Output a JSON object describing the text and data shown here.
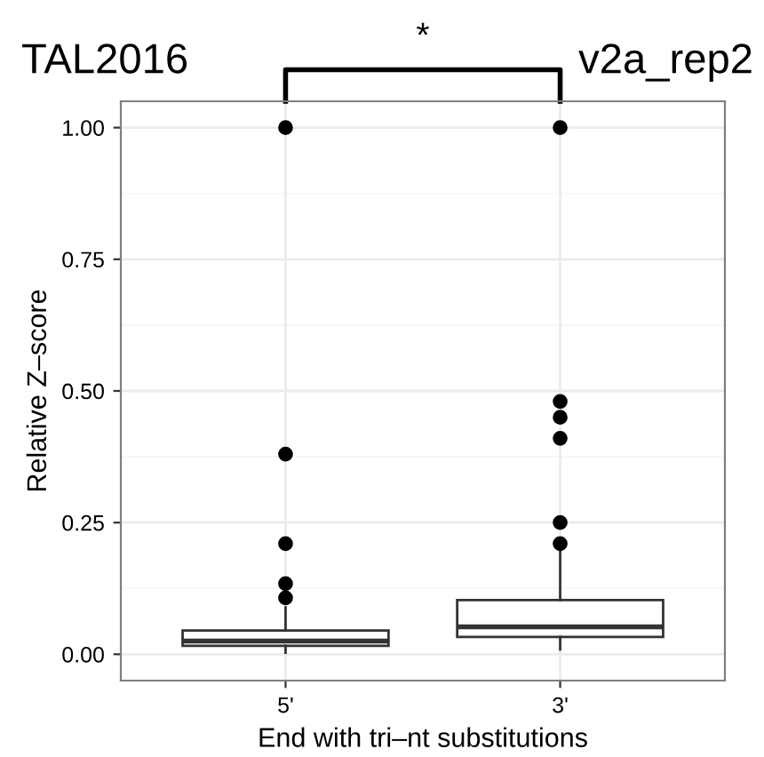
{
  "chart_data": {
    "type": "box",
    "title": "TAL2016",
    "subtitle": "v2a_rep2",
    "xlabel": "End with tri–nt substitutions",
    "ylabel": "Relative Z–score",
    "categories": [
      "5'",
      "3'"
    ],
    "boxes": [
      {
        "low": 0.003,
        "q1": 0.016,
        "median": 0.025,
        "q3": 0.045,
        "high": 0.089,
        "outliers": [
          1.0,
          0.38,
          0.21,
          0.134,
          0.107
        ]
      },
      {
        "low": 0.009,
        "q1": 0.033,
        "median": 0.052,
        "q3": 0.103,
        "high": 0.21,
        "outliers": [
          1.0,
          0.48,
          0.45,
          0.41,
          0.25,
          0.21
        ]
      }
    ],
    "annotations": [
      "*"
    ],
    "ylim": [
      -0.05,
      1.05
    ],
    "yticks": [
      {
        "value": 0,
        "label": "0.00"
      },
      {
        "value": 0.25,
        "label": "0.25"
      },
      {
        "value": 0.5,
        "label": "0.50"
      },
      {
        "value": 0.75,
        "label": "0.75"
      },
      {
        "value": 1,
        "label": "1.00"
      }
    ],
    "grid": true
  }
}
